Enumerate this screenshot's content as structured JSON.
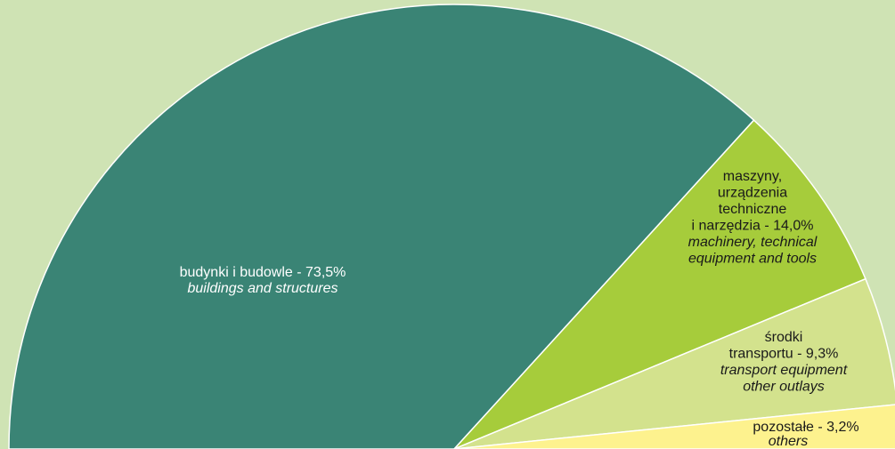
{
  "chart_data": {
    "type": "half-pie",
    "values": [
      73.5,
      14.0,
      9.3,
      3.2
    ],
    "colors": [
      "#3a8475",
      "#a6cc3b",
      "#d3e28d",
      "#fdf28e"
    ],
    "labels": [
      {
        "pl": [
          "budynki i budowle - 73,5%"
        ],
        "en": [
          "buildings and structures"
        ]
      },
      {
        "pl": [
          "maszyny,",
          "urządzenia",
          "techniczne",
          "i narzędzia - 14,0%"
        ],
        "en": [
          "machinery, technical",
          "equipment and tools"
        ]
      },
      {
        "pl": [
          "środki",
          "transportu - 9,3%"
        ],
        "en": [
          "transport equipment",
          "other outlays"
        ]
      },
      {
        "pl": [
          "pozostałe - 3,2%"
        ],
        "en": [
          "others"
        ]
      }
    ]
  }
}
